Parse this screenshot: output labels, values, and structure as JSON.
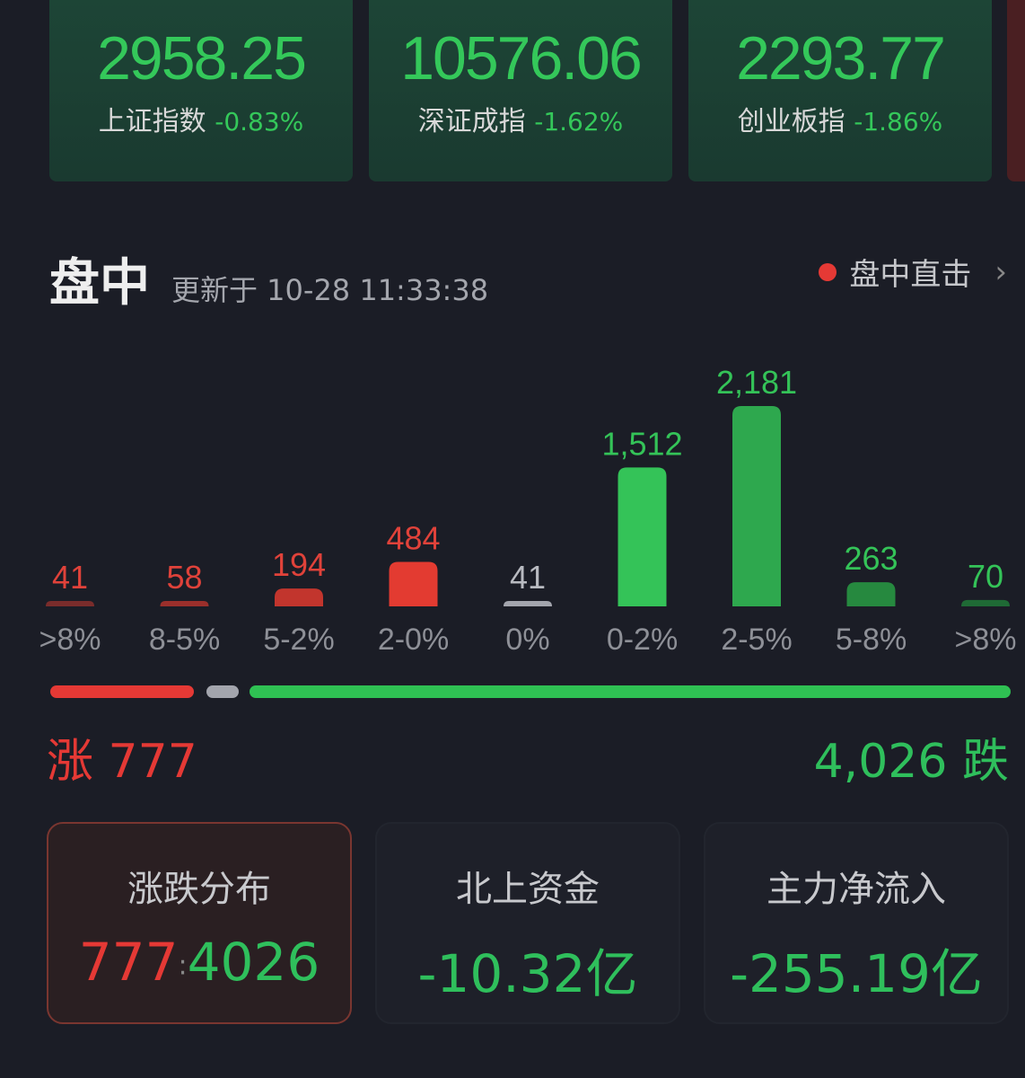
{
  "indices": [
    {
      "value": "2958.25",
      "name": "上证指数",
      "change": "-0.83%"
    },
    {
      "value": "10576.06",
      "name": "深证成指",
      "change": "-1.62%"
    },
    {
      "value": "2293.77",
      "name": "创业板指",
      "change": "-1.86%"
    }
  ],
  "header": {
    "title": "盘中",
    "updated": "更新于 10-28 11:33:38",
    "live_label": "盘中直击",
    "chevron": "›"
  },
  "chart_data": {
    "type": "bar",
    "categories": [
      ">8%",
      "8-5%",
      "5-2%",
      "2-0%",
      "0%",
      "0-2%",
      "2-5%",
      "5-8%",
      ">8%"
    ],
    "values": [
      41,
      58,
      194,
      484,
      41,
      1512,
      2181,
      263,
      70
    ],
    "value_labels": [
      "41",
      "58",
      "194",
      "484",
      "41",
      "1,512",
      "2,181",
      "263",
      "70"
    ],
    "colors": [
      "#7a2c2b",
      "#9b2f2b",
      "#c2352d",
      "#e33b31",
      "#a3a5ad",
      "#34c358",
      "#2ea84e",
      "#26893f",
      "#1f6a35"
    ],
    "label_colors": [
      "#e0423a",
      "#e0423a",
      "#e0423a",
      "#e0423a",
      "#b8bac0",
      "#34c358",
      "#34c358",
      "#34c358",
      "#34c358"
    ]
  },
  "summary": {
    "up_label": "涨",
    "up_count": "777",
    "down_count": "4,026",
    "down_label": "跌",
    "flat_count": 41,
    "up_color": "#e53935",
    "down_color": "#2fbf5c"
  },
  "cards": [
    {
      "title": "涨跌分布",
      "up": "777",
      "sep": ":",
      "down": "4026"
    },
    {
      "title": "北上资金",
      "value": "-10.32亿"
    },
    {
      "title": "主力净流入",
      "value": "-255.19亿"
    }
  ]
}
